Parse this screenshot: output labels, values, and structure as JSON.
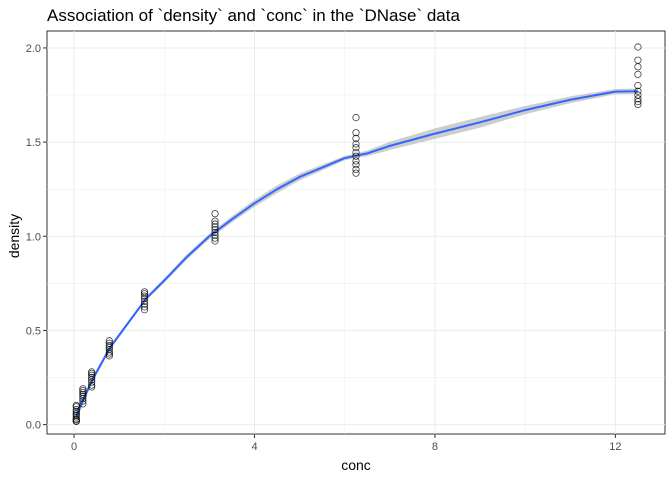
{
  "chart_data": {
    "type": "scatter",
    "title": "Association of `density` and `conc` in the `DNase` data",
    "xlabel": "conc",
    "ylabel": "density",
    "xlim": [
      -0.6,
      13.1
    ],
    "ylim": [
      -0.05,
      2.09
    ],
    "x_ticks": [
      0,
      4,
      8,
      12
    ],
    "y_ticks": [
      0.0,
      0.5,
      1.0,
      1.5,
      2.0
    ],
    "grid": true,
    "point_style": "open circles",
    "smooth_color": "#3366FF",
    "ribbon_color": "#c8c8c8",
    "points": [
      [
        0.04882812,
        0.017
      ],
      [
        0.04882812,
        0.018
      ],
      [
        0.04882812,
        0.025
      ],
      [
        0.04882812,
        0.03
      ],
      [
        0.04882812,
        0.04
      ],
      [
        0.04882812,
        0.05
      ],
      [
        0.04882812,
        0.058
      ],
      [
        0.04882812,
        0.07
      ],
      [
        0.04882812,
        0.08
      ],
      [
        0.04882812,
        0.095
      ],
      [
        0.04882812,
        0.102
      ],
      [
        0.1953125,
        0.11
      ],
      [
        0.1953125,
        0.125
      ],
      [
        0.1953125,
        0.138
      ],
      [
        0.1953125,
        0.15
      ],
      [
        0.1953125,
        0.16
      ],
      [
        0.1953125,
        0.17
      ],
      [
        0.1953125,
        0.18
      ],
      [
        0.1953125,
        0.19
      ],
      [
        0.390625,
        0.2
      ],
      [
        0.390625,
        0.21
      ],
      [
        0.390625,
        0.225
      ],
      [
        0.390625,
        0.238
      ],
      [
        0.390625,
        0.25
      ],
      [
        0.390625,
        0.262
      ],
      [
        0.390625,
        0.272
      ],
      [
        0.390625,
        0.28
      ],
      [
        0.78125,
        0.365
      ],
      [
        0.78125,
        0.375
      ],
      [
        0.78125,
        0.385
      ],
      [
        0.78125,
        0.398
      ],
      [
        0.78125,
        0.41
      ],
      [
        0.78125,
        0.42
      ],
      [
        0.78125,
        0.432
      ],
      [
        0.78125,
        0.445
      ],
      [
        1.5625,
        0.61
      ],
      [
        1.5625,
        0.625
      ],
      [
        1.5625,
        0.64
      ],
      [
        1.5625,
        0.655
      ],
      [
        1.5625,
        0.67
      ],
      [
        1.5625,
        0.682
      ],
      [
        1.5625,
        0.695
      ],
      [
        1.5625,
        0.705
      ],
      [
        3.125,
        0.975
      ],
      [
        3.125,
        0.99
      ],
      [
        3.125,
        1.005
      ],
      [
        3.125,
        1.02
      ],
      [
        3.125,
        1.035
      ],
      [
        3.125,
        1.05
      ],
      [
        3.125,
        1.065
      ],
      [
        3.125,
        1.08
      ],
      [
        3.125,
        1.12
      ],
      [
        6.25,
        1.335
      ],
      [
        6.25,
        1.355
      ],
      [
        6.25,
        1.38
      ],
      [
        6.25,
        1.4
      ],
      [
        6.25,
        1.425
      ],
      [
        6.25,
        1.445
      ],
      [
        6.25,
        1.47
      ],
      [
        6.25,
        1.49
      ],
      [
        6.25,
        1.52
      ],
      [
        6.25,
        1.55
      ],
      [
        6.25,
        1.63
      ],
      [
        12.5,
        1.7
      ],
      [
        12.5,
        1.715
      ],
      [
        12.5,
        1.73
      ],
      [
        12.5,
        1.75
      ],
      [
        12.5,
        1.77
      ],
      [
        12.5,
        1.8
      ],
      [
        12.5,
        1.86
      ],
      [
        12.5,
        1.9
      ],
      [
        12.5,
        1.935
      ],
      [
        12.5,
        2.005
      ]
    ],
    "smooth": [
      [
        0.05,
        0.045
      ],
      [
        0.2,
        0.13
      ],
      [
        0.4,
        0.235
      ],
      [
        0.8,
        0.41
      ],
      [
        1.2,
        0.54
      ],
      [
        1.6,
        0.67
      ],
      [
        2.0,
        0.765
      ],
      [
        2.5,
        0.89
      ],
      [
        3.0,
        1.0
      ],
      [
        3.5,
        1.09
      ],
      [
        4.0,
        1.175
      ],
      [
        4.5,
        1.25
      ],
      [
        5.0,
        1.315
      ],
      [
        5.5,
        1.365
      ],
      [
        6.0,
        1.415
      ],
      [
        6.25,
        1.428
      ],
      [
        6.5,
        1.44
      ],
      [
        7.0,
        1.48
      ],
      [
        8.0,
        1.545
      ],
      [
        9.0,
        1.605
      ],
      [
        10.0,
        1.67
      ],
      [
        11.0,
        1.725
      ],
      [
        12.0,
        1.768
      ],
      [
        12.5,
        1.77
      ]
    ],
    "ribbon_halfwidth": [
      0.03,
      0.02,
      0.015,
      0.012,
      0.01,
      0.01,
      0.012,
      0.014,
      0.014,
      0.016,
      0.018,
      0.02,
      0.018,
      0.015,
      0.012,
      0.012,
      0.015,
      0.022,
      0.028,
      0.028,
      0.022,
      0.018,
      0.014,
      0.015
    ]
  }
}
